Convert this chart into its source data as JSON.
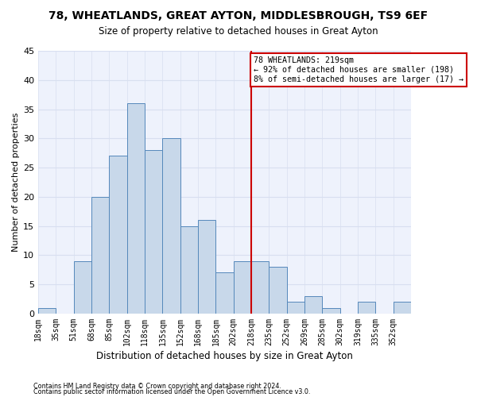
{
  "title1": "78, WHEATLANDS, GREAT AYTON, MIDDLESBROUGH, TS9 6EF",
  "title2": "Size of property relative to detached houses in Great Ayton",
  "xlabel": "Distribution of detached houses by size in Great Ayton",
  "ylabel": "Number of detached properties",
  "footer1": "Contains HM Land Registry data © Crown copyright and database right 2024.",
  "footer2": "Contains public sector information licensed under the Open Government Licence v3.0.",
  "bin_labels": [
    "18sqm",
    "35sqm",
    "51sqm",
    "68sqm",
    "85sqm",
    "102sqm",
    "118sqm",
    "135sqm",
    "152sqm",
    "168sqm",
    "185sqm",
    "202sqm",
    "218sqm",
    "235sqm",
    "252sqm",
    "269sqm",
    "285sqm",
    "302sqm",
    "319sqm",
    "335sqm",
    "352sqm"
  ],
  "bar_values": [
    1,
    0,
    9,
    20,
    27,
    36,
    28,
    30,
    15,
    16,
    7,
    9,
    9,
    8,
    2,
    3,
    1,
    0,
    2,
    0,
    2
  ],
  "bar_color": "#c8d8ea",
  "bar_edgecolor": "#5588bb",
  "grid_color": "#d8dff0",
  "background_color": "#eef2fc",
  "vline_color": "#cc0000",
  "annotation_text": "78 WHEATLANDS: 219sqm\n← 92% of detached houses are smaller (198)\n8% of semi-detached houses are larger (17) →",
  "annotation_box_edgecolor": "#cc0000",
  "ylim": [
    0,
    45
  ],
  "yticks": [
    0,
    5,
    10,
    15,
    20,
    25,
    30,
    35,
    40,
    45
  ],
  "vline_bin_index": 12,
  "n_bins": 21
}
